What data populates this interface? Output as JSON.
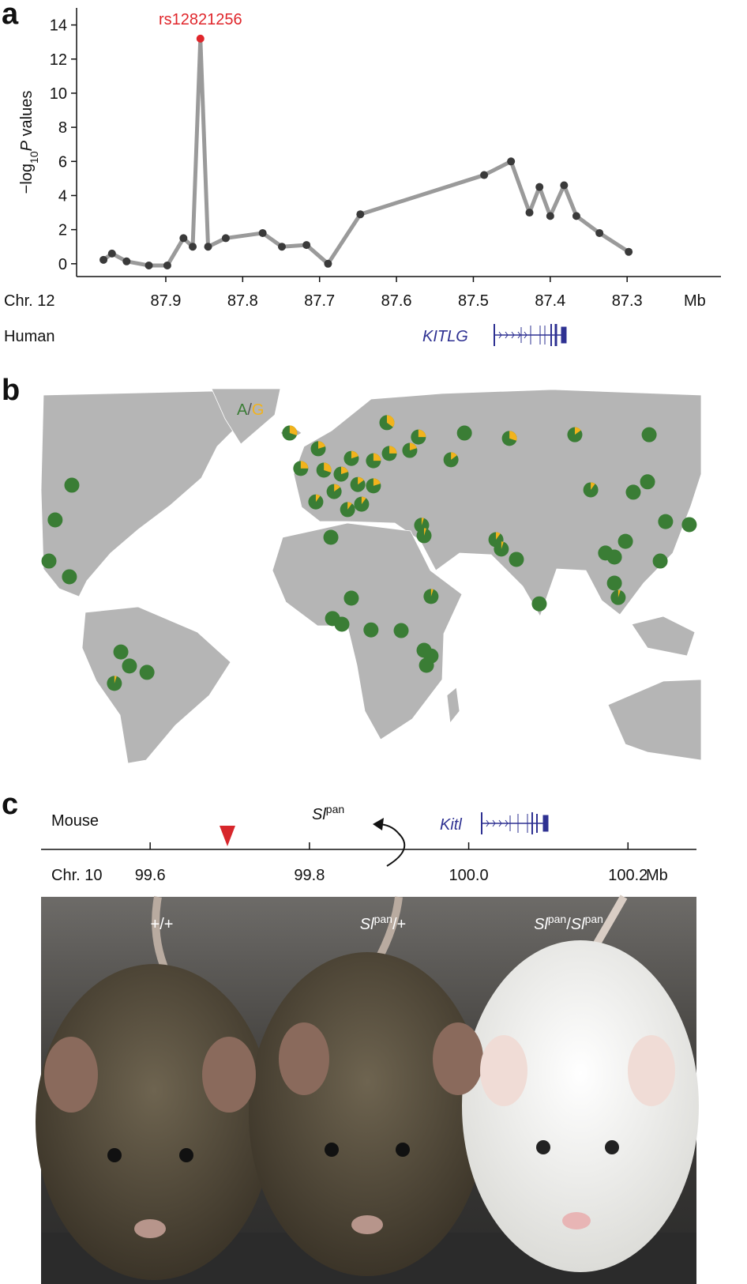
{
  "panel_labels": [
    "a",
    "b",
    "c"
  ],
  "chart_data": {
    "type": "line",
    "x": [
      87.981,
      87.97,
      87.951,
      87.922,
      87.898,
      87.877,
      87.865,
      87.855,
      87.845,
      87.822,
      87.774,
      87.749,
      87.717,
      87.689,
      87.647,
      87.486,
      87.451,
      87.427,
      87.414,
      87.4,
      87.382,
      87.366,
      87.336,
      87.298
    ],
    "values": [
      0.23,
      0.6,
      0.14,
      -0.1,
      -0.1,
      1.5,
      1.0,
      13.2,
      1.0,
      1.5,
      1.8,
      1.0,
      1.1,
      0,
      2.9,
      5.2,
      6.0,
      3.0,
      4.5,
      2.8,
      4.6,
      2.8,
      1.8,
      0.7
    ],
    "color": "#9a9a9a",
    "marker_color": "#3a3a3a",
    "highlight": {
      "index": 7,
      "label": "rs12821256",
      "color": "#e0262b"
    },
    "xlim": [
      88.016,
      87.178
    ],
    "xticks": [
      87.9,
      87.8,
      87.7,
      87.6,
      87.5,
      87.4,
      87.3
    ],
    "ylim": [
      -0.75,
      15
    ],
    "yticks": [
      0,
      2,
      4,
      6,
      8,
      10,
      12,
      14
    ],
    "y_label": [
      {
        "t": "−log",
        "s": ""
      },
      {
        "t": "10",
        "s": "sub"
      },
      {
        "t": "P",
        "s": "i"
      },
      {
        "t": " values",
        "s": ""
      }
    ],
    "x_unit": "Mb",
    "chromosome": "Chr. 12",
    "species": "Human",
    "gene": "KITLG",
    "gene_color": "#2e3192"
  },
  "map": {
    "legend": [
      {
        "t": "A",
        "color": "#3a7d35"
      },
      {
        "t": "/",
        "color": "#555555"
      },
      {
        "t": "G",
        "color": "#f2b31c"
      }
    ],
    "land_color": "#b5b5b5",
    "lon": [
      -10.6,
      25.5,
      37.2,
      54.3,
      71.0,
      95.3,
      122.9,
      0,
      12.3,
      -6.5,
      2.1,
      8.5,
      20.5,
      26.4,
      34.0,
      49.3,
      14.7,
      20.5,
      5.9,
      -0.9,
      10.9,
      16.1,
      -91.5,
      -97.7,
      -100.0,
      -92.4,
      101.2,
      117.0,
      122.3,
      129.0,
      137.8,
      38.4,
      39.3,
      66.0,
      68.0,
      73.6,
      114.1,
      106.7,
      110.0,
      127.0,
      110.0,
      111.4,
      82.1,
      4.7,
      12.3,
      41.9,
      5.3,
      8.8,
      19.6,
      30.8,
      39.3,
      41.9,
      40.2,
      -73.3,
      -70.1,
      -63.6,
      -75.7
    ],
    "lat": [
      65.0,
      68.1,
      63.8,
      65.0,
      63.4,
      64.5,
      64.5,
      60.3,
      57.4,
      54.4,
      53.9,
      52.7,
      56.7,
      58.9,
      59.8,
      57.0,
      49.6,
      49.2,
      47.5,
      44.4,
      42.1,
      43.7,
      49.4,
      39.0,
      26.7,
      22.0,
      48.0,
      47.3,
      50.4,
      38.5,
      37.6,
      37.4,
      34.3,
      33.1,
      30.3,
      27.2,
      32.6,
      29.1,
      27.9,
      26.7,
      20.1,
      15.8,
      13.9,
      33.8,
      15.6,
      16.1,
      9.5,
      7.8,
      6.1,
      5.9,
      0,
      -1.7,
      -4.5,
      -0.5,
      -4.7,
      -6.6,
      -9.9
    ],
    "g": [
      0.3,
      0.35,
      0.25,
      0,
      0.3,
      0.15,
      0,
      0.2,
      0.2,
      0.25,
      0.3,
      0.2,
      0.25,
      0.25,
      0.2,
      0.15,
      0.15,
      0.2,
      0.15,
      0.1,
      0.1,
      0.1,
      0,
      0,
      0,
      0,
      0.1,
      0,
      0,
      0,
      0,
      0.05,
      0.05,
      0.1,
      0.05,
      0,
      0,
      0,
      0,
      0,
      0,
      0.05,
      0,
      0,
      0,
      0.05,
      0,
      0,
      0,
      0,
      0,
      0,
      0,
      0,
      0,
      0,
      0.05
    ]
  },
  "mouse_locus": {
    "species": "Mouse",
    "chromosome": "Chr. 10",
    "x_unit": "Mb",
    "xlim": [
      99.463,
      100.286
    ],
    "xticks": [
      99.6,
      99.8,
      {
        "value": 100,
        "label": "100.0"
      },
      100.2
    ],
    "mutation": 99.697,
    "mutation_color": "#d7262b",
    "allele": [
      {
        "t": "Sl",
        "s": "i"
      },
      {
        "t": "pan",
        "s": "sup"
      }
    ],
    "gene": "Kitl",
    "gene_color": "#2e3192"
  },
  "photo": {
    "genotypes": [
      [
        {
          "t": "+/+",
          "s": ""
        }
      ],
      [
        {
          "t": "Sl",
          "s": "i"
        },
        {
          "t": "pan",
          "s": "sup"
        },
        {
          "t": "/+",
          "s": ""
        }
      ],
      [
        {
          "t": "Sl",
          "s": "i"
        },
        {
          "t": "pan",
          "s": "sup"
        },
        {
          "t": "/",
          "s": ""
        },
        {
          "t": "Sl",
          "s": "i"
        },
        {
          "t": "pan",
          "s": "sup"
        }
      ]
    ]
  }
}
